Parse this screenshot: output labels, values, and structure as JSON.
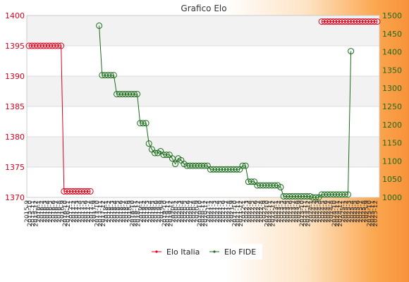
{
  "chart_data": {
    "type": "line",
    "title": "Grafico Elo",
    "y_left": {
      "ylim": [
        1370,
        1400
      ],
      "ticks": [
        1370,
        1375,
        1380,
        1385,
        1390,
        1395,
        1400
      ],
      "color": "#e0001b"
    },
    "y_right": {
      "ylim": [
        1000,
        1500
      ],
      "ticks": [
        1000,
        1050,
        1100,
        1150,
        1200,
        1250,
        1300,
        1350,
        1400,
        1450,
        1500
      ],
      "color": "#1a6b1a"
    },
    "x": {
      "count": 120,
      "tick_start": "2015-9",
      "tick_end": "2025-12"
    },
    "grid": true,
    "legend_position": "bottom-center",
    "series": [
      {
        "name": "Elo Italia",
        "axis": "left",
        "color": "#e0001b",
        "segments": [
          {
            "start": 0,
            "values": [
              1395,
              1395,
              1395,
              1395,
              1395,
              1395,
              1395,
              1395,
              1395,
              1395,
              1395,
              1395,
              1371,
              1371,
              1371,
              1371,
              1371,
              1371,
              1371,
              1371,
              1371,
              1371
            ]
          },
          {
            "start": 100,
            "values": [
              1399,
              1399,
              1399,
              1399,
              1399,
              1399,
              1399,
              1399,
              1399,
              1399,
              1399,
              1399,
              1399,
              1399,
              1399,
              1399,
              1399,
              1399,
              1399,
              1399
            ]
          }
        ]
      },
      {
        "name": "Elo FIDE",
        "axis": "right",
        "color": "#1a6b1a",
        "segments": [
          {
            "start": 24,
            "values": [
              1472,
              1336,
              1336,
              1336,
              1336,
              1336,
              1284,
              1284,
              1284,
              1284,
              1284,
              1284,
              1284,
              1284,
              1204,
              1204,
              1204,
              1148,
              1132,
              1122,
              1122,
              1127,
              1117,
              1117,
              1117,
              1107,
              1092,
              1107,
              1102,
              1092,
              1087,
              1087,
              1087,
              1087,
              1087,
              1087,
              1087,
              1087,
              1077,
              1077,
              1077,
              1077,
              1077,
              1077,
              1077,
              1077,
              1077,
              1077,
              1077,
              1087,
              1087,
              1043,
              1043,
              1043,
              1033,
              1033,
              1033,
              1033,
              1033,
              1033,
              1033,
              1033,
              1028,
              1003,
              1003,
              1003,
              1003,
              1003,
              1003,
              1003,
              1003,
              1003,
              1003,
              1000,
              1000,
              1000,
              1008,
              1008,
              1008,
              1008,
              1008,
              1008,
              1008,
              1008,
              1008,
              1008,
              1402
            ]
          }
        ]
      }
    ]
  }
}
